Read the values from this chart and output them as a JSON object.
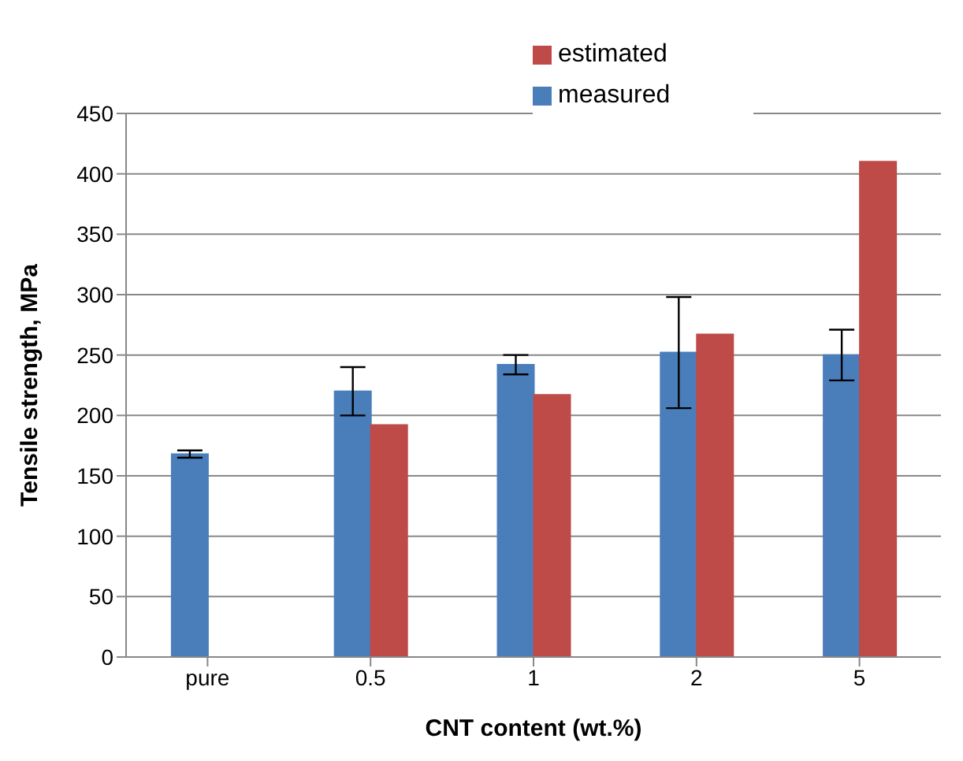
{
  "chart_data": {
    "type": "bar",
    "xlabel": "CNT content (wt.%)",
    "ylabel": "Tensile strength, MPa",
    "categories": [
      "pure",
      "0.5",
      "1",
      "2",
      "5"
    ],
    "series": [
      {
        "name": "measured",
        "color": "#4a7ebb",
        "values": [
          168,
          220,
          242,
          252,
          250
        ],
        "errors": [
          3,
          20,
          8,
          46,
          21
        ]
      },
      {
        "name": "estimated",
        "color": "#be4b48",
        "values": [
          null,
          192,
          217,
          267,
          410
        ]
      }
    ],
    "ylim": [
      0,
      450
    ],
    "yticks": [
      0,
      50,
      100,
      150,
      200,
      250,
      300,
      350,
      400,
      450
    ],
    "grid": "y",
    "legend": "top"
  }
}
